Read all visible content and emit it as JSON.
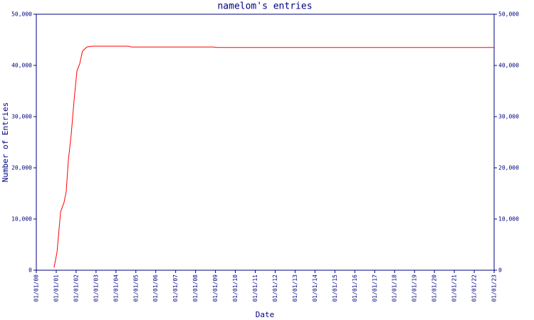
{
  "chart_data": {
    "type": "line",
    "title": "namelom's entries",
    "xlabel": "Date",
    "ylabel": "Number of Entries",
    "color": "#ff0000",
    "axis_color": "#000080",
    "x": [
      2000.89,
      2001.04,
      2001.22,
      2001.39,
      2001.5,
      2001.61,
      2001.75,
      2001.9,
      2002.04,
      2002.18,
      2002.32,
      2002.54,
      2002.83,
      2004.61,
      2004.79,
      2008.91,
      2009.08,
      2023.0
    ],
    "values": [
      500,
      3500,
      11400,
      13200,
      15300,
      21500,
      26400,
      33300,
      38900,
      40300,
      42800,
      43600,
      43750,
      43750,
      43600,
      43600,
      43500,
      43500
    ],
    "xlim": [
      2000,
      2023
    ],
    "xticks": [
      {
        "value": 2000,
        "label": "01/01/00"
      },
      {
        "value": 2001,
        "label": "01/01/01"
      },
      {
        "value": 2002,
        "label": "01/01/02"
      },
      {
        "value": 2003,
        "label": "01/01/03"
      },
      {
        "value": 2004,
        "label": "01/01/04"
      },
      {
        "value": 2005,
        "label": "01/01/05"
      },
      {
        "value": 2006,
        "label": "01/01/06"
      },
      {
        "value": 2007,
        "label": "01/01/07"
      },
      {
        "value": 2008,
        "label": "01/01/08"
      },
      {
        "value": 2009,
        "label": "01/01/09"
      },
      {
        "value": 2010,
        "label": "01/01/10"
      },
      {
        "value": 2011,
        "label": "01/01/11"
      },
      {
        "value": 2012,
        "label": "01/01/12"
      },
      {
        "value": 2013,
        "label": "01/01/13"
      },
      {
        "value": 2014,
        "label": "01/01/14"
      },
      {
        "value": 2015,
        "label": "01/01/15"
      },
      {
        "value": 2016,
        "label": "01/01/16"
      },
      {
        "value": 2017,
        "label": "01/01/17"
      },
      {
        "value": 2018,
        "label": "01/01/18"
      },
      {
        "value": 2019,
        "label": "01/01/19"
      },
      {
        "value": 2020,
        "label": "01/01/20"
      },
      {
        "value": 2021,
        "label": "01/01/21"
      },
      {
        "value": 2022,
        "label": "01/01/22"
      },
      {
        "value": 2023,
        "label": "01/01/23"
      }
    ],
    "ylim": [
      0,
      50000
    ],
    "yticks": [
      0,
      {
        "value": 10000,
        "label": "10,000"
      },
      {
        "value": 20000,
        "label": "20,000"
      },
      {
        "value": 30000,
        "label": "30,000"
      },
      {
        "value": 40000,
        "label": "40,000"
      },
      {
        "value": 50000,
        "label": "50,000"
      }
    ],
    "grid": false
  }
}
